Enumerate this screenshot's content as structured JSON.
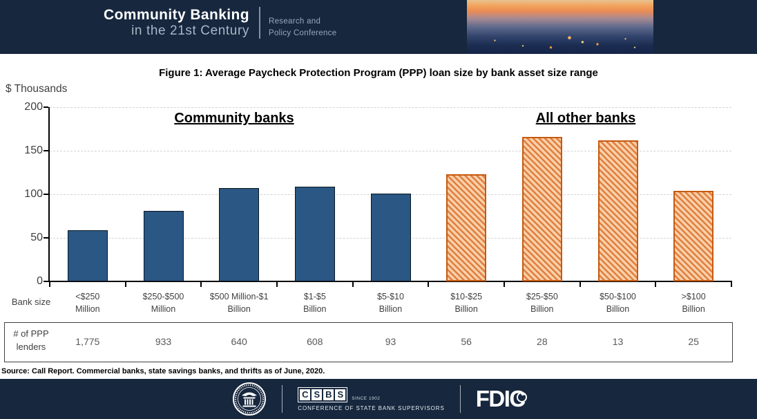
{
  "header": {
    "brand_line1": "Community Banking",
    "brand_line2": "in the 21st Century",
    "tagline_line1": "Research and",
    "tagline_line2": "Policy Conference"
  },
  "title": "Figure 1: Average Paycheck Protection Program (PPP) loan size by bank asset size range",
  "y_axis": {
    "label": "$ Thousands",
    "ticks": [
      200,
      150,
      100,
      50,
      0
    ]
  },
  "group_labels": {
    "community": "Community banks",
    "other": "All other banks"
  },
  "x_axis": {
    "bank_size_label": "Bank size"
  },
  "table": {
    "row_label": "# of PPP lenders"
  },
  "source": "Source: Call Report. Commercial banks, state savings banks, and thrifts as of June, 2020.",
  "chart_data": {
    "type": "bar",
    "title": "Figure 1: Average Paycheck Protection Program (PPP) loan size by bank asset size range",
    "xlabel": "Bank size",
    "ylabel": "$ Thousands",
    "ylim": [
      0,
      200
    ],
    "grid": "horizontal-dashed",
    "categories": [
      "<$250 Million",
      "$250-$500 Million",
      "$500 Million-$1 Billion",
      "$1-$5 Billion",
      "$5-$10 Billion",
      "$10-$25 Billion",
      "$25-$50 Billion",
      "$50-$100 Billion",
      ">$100 Billion"
    ],
    "series": [
      {
        "name": "Community banks",
        "values": [
          59,
          81,
          107,
          109,
          101
        ],
        "color": "#2A5783",
        "pattern": "solid"
      },
      {
        "name": "All other banks",
        "values": [
          123,
          166,
          162,
          104
        ],
        "color": "#ED7D31",
        "pattern": "diagonal-hatch"
      }
    ],
    "ppp_lenders": [
      "1,775",
      "933",
      "640",
      "608",
      "93",
      "56",
      "28",
      "13",
      "25"
    ]
  },
  "footer": {
    "csbs_letters": [
      "C",
      "S",
      "B",
      "S"
    ],
    "csbs_since": "SINCE 1902",
    "csbs_tagline": "CONFERENCE OF STATE BANK SUPERVISORS",
    "fdic_text": "FDIC"
  },
  "colors": {
    "header_bg": "#16273E",
    "bar_blue": "#2A5783",
    "bar_orange_fill": "#F9CFA9",
    "bar_orange_stripe": "#DF7E3D",
    "bar_orange_border": "#C55A11",
    "gridline": "#D2D2D2",
    "axis_text": "#404040"
  }
}
